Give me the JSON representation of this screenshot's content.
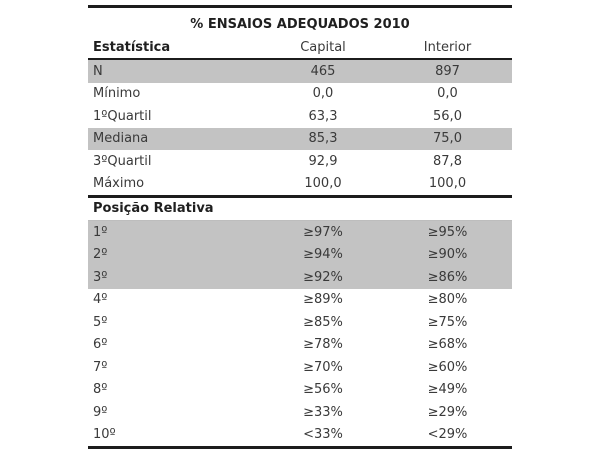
{
  "table": {
    "title": "% ENSAIOS ADEQUADOS 2010",
    "columns": [
      "Estatística",
      "Capital",
      "Interior"
    ],
    "stats_rows": [
      {
        "label": "N",
        "capital": "465",
        "interior": "897",
        "shaded": true
      },
      {
        "label": "Mínimo",
        "capital": "0,0",
        "interior": "0,0",
        "shaded": false
      },
      {
        "label": "1ºQuartil",
        "capital": "63,3",
        "interior": "56,0",
        "shaded": false
      },
      {
        "label": "Mediana",
        "capital": "85,3",
        "interior": "75,0",
        "shaded": true
      },
      {
        "label": "3ºQuartil",
        "capital": "92,9",
        "interior": "87,8",
        "shaded": false
      },
      {
        "label": "Máximo",
        "capital": "100,0",
        "interior": "100,0",
        "shaded": false
      }
    ],
    "section_header": "Posição Relativa",
    "position_rows": [
      {
        "label": "1º",
        "capital": "≥97%",
        "interior": "≥95%",
        "shaded": true
      },
      {
        "label": "2º",
        "capital": "≥94%",
        "interior": "≥90%",
        "shaded": true
      },
      {
        "label": "3º",
        "capital": "≥92%",
        "interior": "≥86%",
        "shaded": true
      },
      {
        "label": "4º",
        "capital": "≥89%",
        "interior": "≥80%",
        "shaded": false
      },
      {
        "label": "5º",
        "capital": "≥85%",
        "interior": "≥75%",
        "shaded": false
      },
      {
        "label": "6º",
        "capital": "≥78%",
        "interior": "≥68%",
        "shaded": false
      },
      {
        "label": "7º",
        "capital": "≥70%",
        "interior": "≥60%",
        "shaded": false
      },
      {
        "label": "8º",
        "capital": "≥56%",
        "interior": "≥49%",
        "shaded": false
      },
      {
        "label": "9º",
        "capital": "≥33%",
        "interior": "≥29%",
        "shaded": false
      },
      {
        "label": "10º",
        "capital": "<33%",
        "interior": "<29%",
        "shaded": false
      }
    ],
    "colors": {
      "shaded_row": "#c3c3c3",
      "border": "#1c1c1c",
      "thin_rule": "#bdbdbd",
      "text": "#3a3a3a",
      "title_text": "#1f1f1f"
    }
  }
}
